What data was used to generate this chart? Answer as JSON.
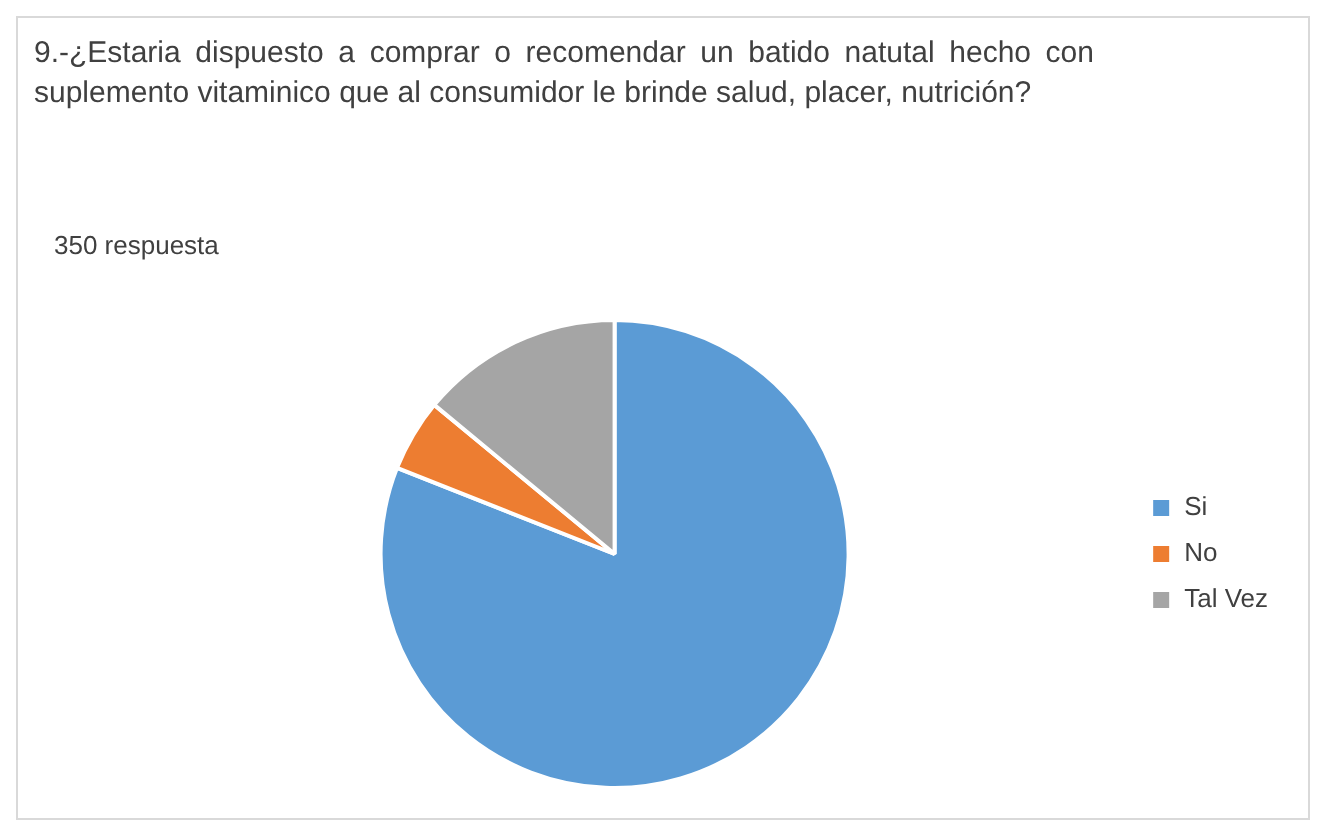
{
  "chart_data": {
    "type": "pie",
    "title": "9.-¿Estaria  dispuesto a comprar o recomendar un batido  natutal hecho con suplemento  vitaminico que al consumidor le brinde salud, placer, nutrición?",
    "annotations": [
      "350 respuesta"
    ],
    "categories": [
      "Si",
      "No",
      "Tal Vez"
    ],
    "values": [
      81,
      5,
      14
    ],
    "colors": [
      "#5b9bd5",
      "#ed7d31",
      "#a5a5a5"
    ],
    "legend": "right"
  }
}
